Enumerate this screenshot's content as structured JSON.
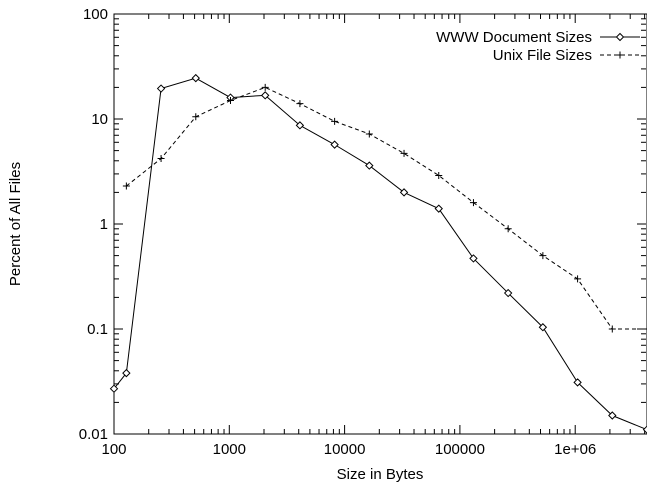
{
  "chart_data": {
    "type": "line",
    "title": "",
    "xlabel": "Size in Bytes",
    "ylabel": "Percent of All Files",
    "x_scale": "log",
    "y_scale": "log",
    "xlim": [
      100,
      4194304
    ],
    "ylim": [
      0.01,
      100
    ],
    "grid": false,
    "legend_position": "top-right",
    "x_ticks": [
      {
        "value": 100,
        "label": "100"
      },
      {
        "value": 1000,
        "label": "1000"
      },
      {
        "value": 10000,
        "label": "10000"
      },
      {
        "value": 100000,
        "label": "100000"
      },
      {
        "value": 1000000,
        "label": "1e+06"
      }
    ],
    "y_ticks": [
      {
        "value": 0.01,
        "label": "0.01"
      },
      {
        "value": 0.1,
        "label": "0.1"
      },
      {
        "value": 1,
        "label": "1"
      },
      {
        "value": 10,
        "label": "10"
      },
      {
        "value": 100,
        "label": "100"
      }
    ],
    "series": [
      {
        "name": "WWW Document Sizes",
        "line_style": "solid",
        "marker": "diamond",
        "points": [
          [
            100,
            0.027
          ],
          [
            128,
            0.038
          ],
          [
            256,
            19.5
          ],
          [
            512,
            24.5
          ],
          [
            1024,
            16.0
          ],
          [
            2048,
            16.8
          ],
          [
            4096,
            8.7
          ],
          [
            8192,
            5.7
          ],
          [
            16384,
            3.6
          ],
          [
            32768,
            2.0
          ],
          [
            65536,
            1.4
          ],
          [
            131072,
            0.47
          ],
          [
            262144,
            0.22
          ],
          [
            524288,
            0.104
          ],
          [
            1048576,
            0.031
          ],
          [
            2097152,
            0.015
          ],
          [
            4194304,
            0.011
          ]
        ]
      },
      {
        "name": "Unix File Sizes",
        "line_style": "dashed",
        "marker": "plus",
        "points": [
          [
            128,
            2.3
          ],
          [
            256,
            4.2
          ],
          [
            512,
            10.5
          ],
          [
            1024,
            15.0
          ],
          [
            2048,
            20.0
          ],
          [
            4096,
            14.0
          ],
          [
            8192,
            9.5
          ],
          [
            16384,
            7.2
          ],
          [
            32768,
            4.7
          ],
          [
            65536,
            2.9
          ],
          [
            131072,
            1.6
          ],
          [
            262144,
            0.9
          ],
          [
            524288,
            0.5
          ],
          [
            1048576,
            0.3
          ],
          [
            2097152,
            0.1
          ],
          [
            4194304,
            0.1
          ]
        ]
      }
    ]
  }
}
